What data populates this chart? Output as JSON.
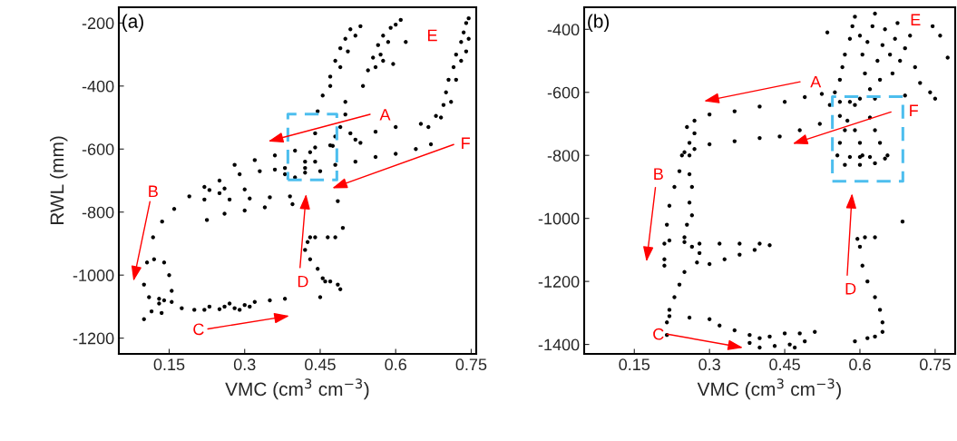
{
  "chart_data": [
    {
      "type": "scatter",
      "xlabel": "VMC (cm$^{3}$ cm$^{−3}$)",
      "ylabel": "RWL (mm)",
      "xlim": [
        0.05,
        0.76
      ],
      "ylim": [
        -1250,
        -150
      ],
      "xticks": [
        0.15,
        0.3,
        0.45,
        0.6,
        0.75
      ],
      "yticks": [
        -1200,
        -1000,
        -800,
        -600,
        -400,
        -200
      ],
      "annotations": [
        "(a)",
        "A",
        "B",
        "C",
        "D",
        "E",
        "F"
      ],
      "series": [
        {
          "color": "#000000",
          "marker": "circle",
          "x": [
            0.1,
            0.106,
            0.118,
            0.136,
            0.16,
            0.19,
            0.22,
            0.25,
            0.29,
            0.33,
            0.36,
            0.38,
            0.28,
            0.32,
            0.36,
            0.4,
            0.44,
            0.47,
            0.52,
            0.56,
            0.6,
            0.65,
            0.68,
            0.665,
            0.38,
            0.42,
            0.48,
            0.52,
            0.56,
            0.6,
            0.64,
            0.67,
            0.23,
            0.26,
            0.3,
            0.25,
            0.22,
            0.27,
            0.31,
            0.35,
            0.39,
            0.225,
            0.26,
            0.3,
            0.34,
            0.395,
            0.42,
            0.43,
            0.44,
            0.445,
            0.455,
            0.47,
            0.48,
            0.49,
            0.5,
            0.51,
            0.47,
            0.49,
            0.505,
            0.52,
            0.53,
            0.535,
            0.545,
            0.555,
            0.565,
            0.575,
            0.59,
            0.6,
            0.61,
            0.57,
            0.585,
            0.56,
            0.575,
            0.595,
            0.62,
            0.5,
            0.5,
            0.49,
            0.51,
            0.53,
            0.48,
            0.475,
            0.69,
            0.695,
            0.7,
            0.705,
            0.715,
            0.72,
            0.73,
            0.735,
            0.74,
            0.745,
            0.72,
            0.73,
            0.74,
            0.745,
            0.71,
            0.42,
            0.44,
            0.45,
            0.4,
            0.425,
            0.43,
            0.44,
            0.42,
            0.43,
            0.445,
            0.455,
            0.46,
            0.47,
            0.485,
            0.465,
            0.48,
            0.495,
            0.485,
            0.45,
            0.49,
            0.12,
            0.14,
            0.15,
            0.155,
            0.14,
            0.135,
            0.1,
            0.115,
            0.13,
            0.11,
            0.13,
            0.155,
            0.175,
            0.2,
            0.23,
            0.26,
            0.28,
            0.3,
            0.32,
            0.35,
            0.38,
            0.22,
            0.25,
            0.27,
            0.29,
            0.31
          ],
          "values": [
            -1030,
            -960,
            -880,
            -830,
            -790,
            -750,
            -720,
            -700,
            -680,
            -670,
            -665,
            -660,
            -650,
            -635,
            -620,
            -605,
            -595,
            -588,
            -570,
            -545,
            -530,
            -520,
            -495,
            -530,
            -680,
            -675,
            -650,
            -640,
            -625,
            -615,
            -600,
            -585,
            -730,
            -725,
            -728,
            -740,
            -760,
            -760,
            -757,
            -753,
            -750,
            -825,
            -805,
            -795,
            -785,
            -775,
            -660,
            -610,
            -550,
            -480,
            -430,
            -370,
            -320,
            -280,
            -250,
            -220,
            -400,
            -340,
            -290,
            -240,
            -210,
            -400,
            -350,
            -310,
            -270,
            -240,
            -215,
            -205,
            -190,
            -300,
            -260,
            -340,
            -320,
            -330,
            -260,
            -450,
            -490,
            -530,
            -550,
            -580,
            -560,
            -590,
            -500,
            -460,
            -420,
            -380,
            -340,
            -300,
            -260,
            -230,
            -200,
            -185,
            -380,
            -320,
            -290,
            -250,
            -450,
            -640,
            -640,
            -670,
            -690,
            -895,
            -880,
            -880,
            -920,
            -950,
            -980,
            -1010,
            -1020,
            -1020,
            -1030,
            -880,
            -880,
            -850,
            -765,
            -1070,
            -1045,
            -950,
            -960,
            -1000,
            -1050,
            -1080,
            -1120,
            -1140,
            -1115,
            -1090,
            -1070,
            -1075,
            -1085,
            -1105,
            -1110,
            -1100,
            -1100,
            -1105,
            -1095,
            -1085,
            -1080,
            -1075,
            -1110,
            -1108,
            -1090,
            -1110,
            -1100
          ]
        }
      ]
    },
    {
      "type": "scatter",
      "xlabel": "VMC (cm$^{3}$ cm$^{−3}$)",
      "xlim": [
        0.05,
        0.79
      ],
      "ylim": [
        -1430,
        -330
      ],
      "xticks": [
        0.15,
        0.3,
        0.45,
        0.6,
        0.75
      ],
      "yticks": [
        -1400,
        -1200,
        -1000,
        -800,
        -600,
        -400
      ],
      "annotations": [
        "(b)",
        "A",
        "B",
        "C",
        "D",
        "E",
        "F"
      ],
      "series": [
        {
          "color": "#000000",
          "marker": "circle",
          "x": [
            0.524,
            0.49,
            0.45,
            0.4,
            0.35,
            0.3,
            0.27,
            0.255,
            0.27,
            0.26,
            0.56,
            0.52,
            0.48,
            0.44,
            0.4,
            0.35,
            0.3,
            0.27,
            0.25,
            0.245,
            0.24,
            0.23,
            0.22,
            0.215,
            0.21,
            0.21,
            0.21,
            0.26,
            0.26,
            0.265,
            0.26,
            0.265,
            0.255,
            0.25,
            0.22,
            0.25,
            0.28,
            0.32,
            0.36,
            0.4,
            0.265,
            0.28,
            0.275,
            0.3,
            0.33,
            0.36,
            0.39,
            0.42,
            0.25,
            0.24,
            0.23,
            0.22,
            0.215,
            0.215,
            0.22,
            0.26,
            0.3,
            0.32,
            0.35,
            0.38,
            0.4,
            0.42,
            0.45,
            0.48,
            0.51,
            0.38,
            0.4,
            0.43,
            0.46,
            0.49,
            0.47,
            0.55,
            0.56,
            0.565,
            0.57,
            0.58,
            0.585,
            0.59,
            0.6,
            0.605,
            0.61,
            0.62,
            0.615,
            0.625,
            0.63,
            0.635,
            0.64,
            0.645,
            0.65,
            0.66,
            0.665,
            0.67,
            0.675,
            0.68,
            0.69,
            0.7,
            0.71,
            0.72,
            0.54,
            0.56,
            0.58,
            0.6,
            0.63,
            0.535,
            0.745,
            0.775,
            0.76,
            0.74,
            0.75,
            0.69,
            0.59,
            0.555,
            0.56,
            0.57,
            0.575,
            0.59,
            0.6,
            0.605,
            0.62,
            0.63,
            0.64,
            0.655,
            0.58,
            0.6,
            0.62,
            0.65,
            0.57,
            0.6,
            0.63,
            0.595,
            0.61,
            0.63,
            0.6,
            0.605,
            0.615,
            0.63,
            0.64,
            0.645,
            0.645,
            0.63,
            0.615,
            0.59,
            0.685
          ],
          "values": [
            -605,
            -615,
            -630,
            -645,
            -660,
            -670,
            -690,
            -710,
            -730,
            -760,
            -675,
            -700,
            -720,
            -740,
            -745,
            -755,
            -765,
            -780,
            -790,
            -800,
            -850,
            -900,
            -960,
            -1020,
            -1080,
            -1130,
            -1150,
            -800,
            -860,
            -900,
            -950,
            -990,
            -1020,
            -1060,
            -1070,
            -1075,
            -1080,
            -1080,
            -1080,
            -1080,
            -1090,
            -1110,
            -1140,
            -1145,
            -1130,
            -1115,
            -1100,
            -1085,
            -1170,
            -1210,
            -1250,
            -1290,
            -1330,
            -1370,
            -1310,
            -1315,
            -1320,
            -1340,
            -1355,
            -1370,
            -1380,
            -1375,
            -1365,
            -1365,
            -1360,
            -1395,
            -1410,
            -1405,
            -1400,
            -1390,
            -1410,
            -600,
            -560,
            -520,
            -480,
            -430,
            -390,
            -360,
            -420,
            -480,
            -540,
            -590,
            -440,
            -390,
            -350,
            -500,
            -560,
            -450,
            -400,
            -480,
            -540,
            -430,
            -380,
            -500,
            -460,
            -420,
            -520,
            -570,
            -640,
            -630,
            -630,
            -620,
            -620,
            -410,
            -390,
            -490,
            -420,
            -600,
            -620,
            -610,
            -640,
            -800,
            -760,
            -720,
            -690,
            -720,
            -760,
            -800,
            -680,
            -720,
            -760,
            -800,
            -805,
            -805,
            -805,
            -810,
            -830,
            -830,
            -825,
            -1065,
            -1060,
            -1060,
            -1090,
            -1150,
            -1200,
            -1250,
            -1290,
            -1330,
            -1360,
            -1375,
            -1380,
            -1390,
            -1010
          ]
        }
      ]
    }
  ]
}
